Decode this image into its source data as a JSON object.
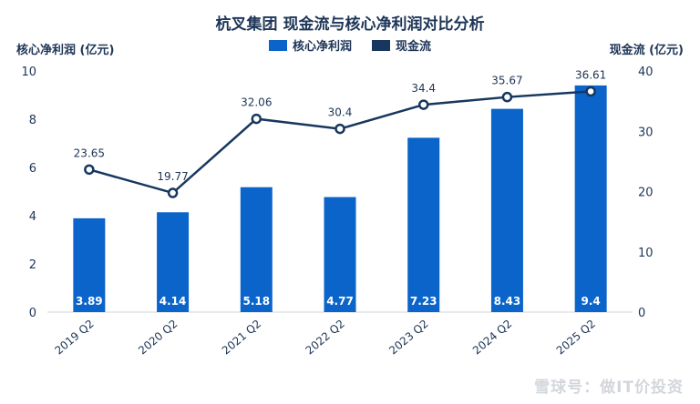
{
  "chart_data": {
    "type": "bar",
    "title": "杭叉集团 现金流与核心净利润对比分析",
    "categories": [
      "2019 Q2",
      "2020 Q2",
      "2021 Q2",
      "2022 Q2",
      "2023 Q2",
      "2024 Q2",
      "2025 Q2"
    ],
    "series": [
      {
        "name": "核心净利润",
        "type": "bar",
        "axis": "left",
        "color": "#0a64c9",
        "values": [
          3.89,
          4.14,
          5.18,
          4.77,
          7.23,
          8.43,
          9.4
        ]
      },
      {
        "name": "现金流",
        "type": "line",
        "axis": "right",
        "color": "#17375e",
        "values": [
          23.65,
          19.77,
          32.06,
          30.4,
          34.4,
          35.67,
          36.61
        ]
      }
    ],
    "ylabel_left": "核心净利润 (亿元)",
    "ylabel_right": "现金流 (亿元)",
    "ylim_left": [
      0,
      10
    ],
    "ylim_right": [
      0,
      40
    ],
    "yticks_left": [
      "0",
      "2",
      "4",
      "6",
      "8",
      "10"
    ],
    "yticks_right": [
      "0",
      "10",
      "20",
      "30",
      "40"
    ],
    "legend_position": "top-center",
    "grid": false
  },
  "watermark": "雪球号：做IT价投资"
}
